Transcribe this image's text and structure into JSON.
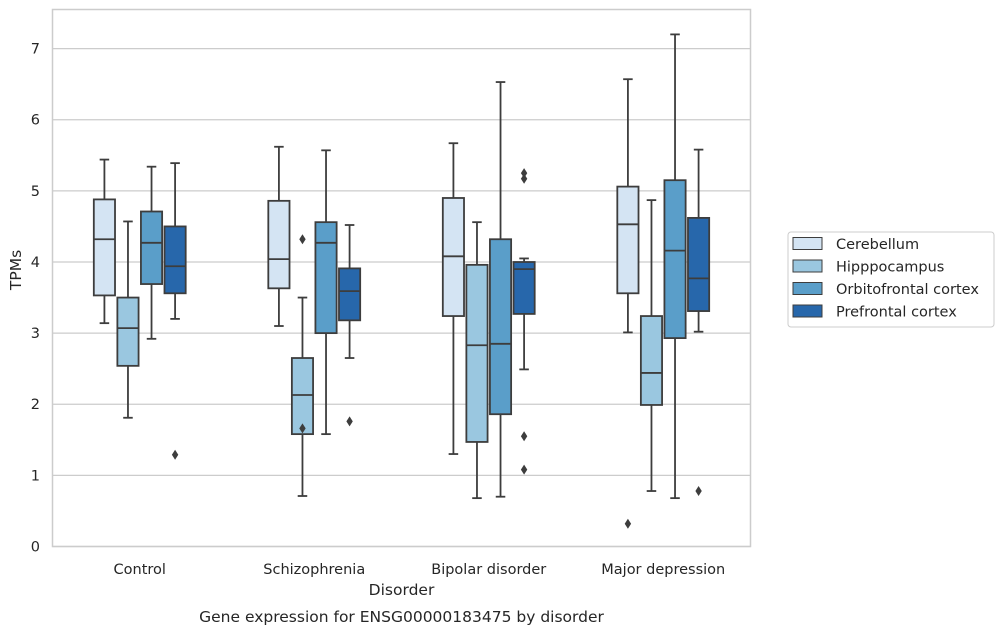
{
  "chart_data": {
    "type": "box",
    "title": "Gene expression for ENSG00000183475 by disorder",
    "xlabel": "Disorder",
    "ylabel": "TPMs",
    "ylim": [
      0,
      7.55
    ],
    "yticks": [
      0,
      1,
      2,
      3,
      4,
      5,
      6,
      7
    ],
    "grid": "horizontal",
    "legend_position": "right",
    "categories": [
      "Control",
      "Schizophrenia",
      "Bipolar disorder",
      "Major depression"
    ],
    "series": [
      {
        "name": "Cerebellum",
        "color": "#d4e4f3",
        "boxes": [
          {
            "whislo": 3.14,
            "q1": 3.53,
            "med": 4.32,
            "q3": 4.88,
            "whishi": 5.44,
            "fliers": []
          },
          {
            "whislo": 3.1,
            "q1": 3.63,
            "med": 4.04,
            "q3": 4.86,
            "whishi": 5.62,
            "fliers": []
          },
          {
            "whislo": 1.3,
            "q1": 3.24,
            "med": 4.08,
            "q3": 4.9,
            "whishi": 5.67,
            "fliers": []
          },
          {
            "whislo": 3.01,
            "q1": 3.56,
            "med": 4.53,
            "q3": 5.06,
            "whishi": 6.57,
            "fliers": [
              0.32
            ]
          }
        ]
      },
      {
        "name": "Hipppocampus",
        "color": "#9ac7e0",
        "boxes": [
          {
            "whislo": 1.81,
            "q1": 2.54,
            "med": 3.07,
            "q3": 3.5,
            "whishi": 4.57,
            "fliers": []
          },
          {
            "whislo": 0.71,
            "q1": 1.58,
            "med": 2.13,
            "q3": 2.65,
            "whishi": 3.5,
            "fliers": [
              1.66,
              4.32
            ]
          },
          {
            "whislo": 0.68,
            "q1": 1.47,
            "med": 2.83,
            "q3": 3.96,
            "whishi": 4.56,
            "fliers": []
          },
          {
            "whislo": 0.78,
            "q1": 1.99,
            "med": 2.44,
            "q3": 3.24,
            "whishi": 4.87,
            "fliers": []
          }
        ]
      },
      {
        "name": "Orbitofrontal cortex",
        "color": "#5a9ec9",
        "boxes": [
          {
            "whislo": 2.92,
            "q1": 3.69,
            "med": 4.27,
            "q3": 4.71,
            "whishi": 5.34,
            "fliers": []
          },
          {
            "whislo": 1.58,
            "q1": 3.0,
            "med": 4.27,
            "q3": 4.56,
            "whishi": 5.57,
            "fliers": []
          },
          {
            "whislo": 0.7,
            "q1": 1.86,
            "med": 2.85,
            "q3": 4.32,
            "whishi": 6.53,
            "fliers": []
          },
          {
            "whislo": 0.68,
            "q1": 2.93,
            "med": 4.16,
            "q3": 5.15,
            "whishi": 7.2,
            "fliers": []
          }
        ]
      },
      {
        "name": "Prefrontal cortex",
        "color": "#2767ab",
        "boxes": [
          {
            "whislo": 3.2,
            "q1": 3.56,
            "med": 3.94,
            "q3": 4.5,
            "whishi": 5.39,
            "fliers": [
              1.29
            ]
          },
          {
            "whislo": 2.65,
            "q1": 3.18,
            "med": 3.59,
            "q3": 3.91,
            "whishi": 4.52,
            "fliers": [
              1.76
            ]
          },
          {
            "whislo": 2.49,
            "q1": 3.27,
            "med": 3.9,
            "q3": 4.0,
            "whishi": 4.05,
            "fliers": [
              1.08,
              1.55,
              5.17,
              5.25
            ]
          },
          {
            "whislo": 3.02,
            "q1": 3.31,
            "med": 3.77,
            "q3": 4.62,
            "whishi": 5.58,
            "fliers": [
              0.78
            ]
          }
        ]
      }
    ]
  }
}
